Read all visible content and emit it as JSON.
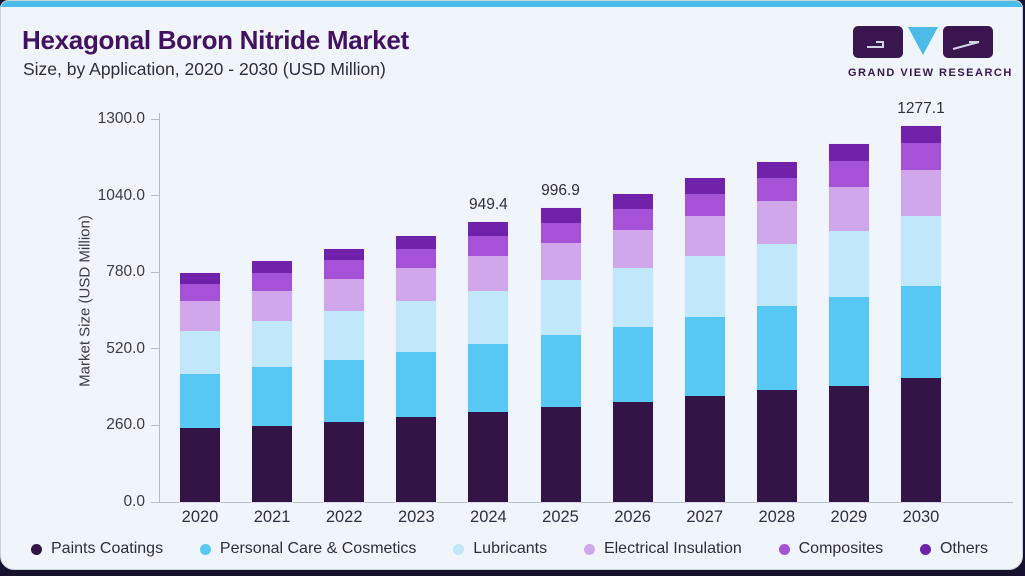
{
  "page": {
    "title": "Hexagonal Boron Nitride Market",
    "subtitle": "Size, by Application, 2020 - 2030 (USD Million)",
    "brand": "GRAND VIEW RESEARCH",
    "colors": {
      "top_accent_bar": "#4abce7",
      "card_background": "#eff5fa",
      "title_text": "#441061",
      "bottom_bar": "#171130",
      "axis_line": "#b6bcc4"
    }
  },
  "chart_data": {
    "type": "bar",
    "stacked": true,
    "title": "Hexagonal Boron Nitride Market Size, by Application, 2020 - 2030 (USD Million)",
    "xlabel": "",
    "ylabel": "Market Size (USD Million)",
    "ylim": [
      0,
      1300
    ],
    "y_ticks": [
      "0.0",
      "260.0",
      "520.0",
      "780.0",
      "1040.0",
      "1300.0"
    ],
    "grid": false,
    "legend_position": "bottom",
    "categories": [
      "2020",
      "2021",
      "2022",
      "2023",
      "2024",
      "2025",
      "2026",
      "2027",
      "2028",
      "2029",
      "2030"
    ],
    "series": [
      {
        "name": "Paints Coatings",
        "color": "#331447",
        "values": [
          251.7,
          259.5,
          273.0,
          290.0,
          305.9,
          322.9,
          338.9,
          359.2,
          379.6,
          395.2,
          421.3
        ]
      },
      {
        "name": "Personal Care & Cosmetics",
        "color": "#57c7f3",
        "values": [
          183.2,
          198.1,
          210.3,
          219.0,
          231.7,
          243.2,
          254.3,
          269.0,
          284.9,
          299.0,
          313.1
        ]
      },
      {
        "name": "Lubricants",
        "color": "#c1e7fa",
        "values": [
          146.8,
          156.0,
          165.2,
          172.5,
          177.8,
          188.6,
          201.2,
          205.9,
          212.4,
          226.3,
          235.3
        ]
      },
      {
        "name": "Electrical Insulation",
        "color": "#d0a7ea",
        "values": [
          99.7,
          103.8,
          108.0,
          114.0,
          121.0,
          124.5,
          130.0,
          135.0,
          143.7,
          150.3,
          158.1
        ]
      },
      {
        "name": "Composites",
        "color": "#a552d7",
        "values": [
          58.7,
          60.0,
          64.0,
          64.5,
          67.0,
          67.8,
          68.5,
          76.0,
          80.0,
          85.0,
          91.0
        ]
      },
      {
        "name": "Others",
        "color": "#7122ab",
        "values": [
          37.2,
          41.2,
          39.6,
          42.6,
          46.0,
          49.9,
          54.0,
          54.3,
          54.8,
          58.4,
          58.3
        ]
      }
    ],
    "totals": [
      777.3,
      818.6,
      860.1,
      902.6,
      949.4,
      996.9,
      1046.9,
      1099.4,
      1155.4,
      1214.2,
      1277.1
    ],
    "data_labels": {
      "2024": "949.4",
      "2025": "996.9",
      "2030": "1277.1"
    }
  }
}
